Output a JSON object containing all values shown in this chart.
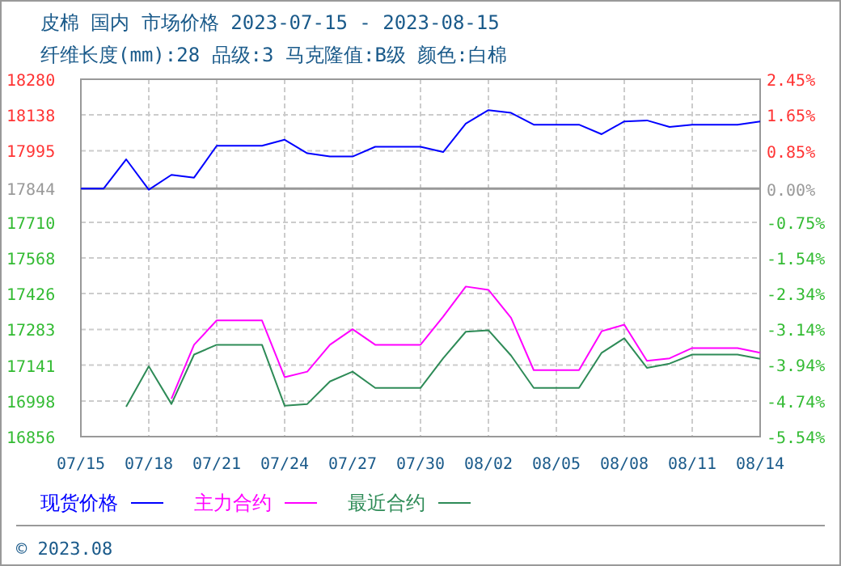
{
  "chart_data": {
    "type": "line",
    "title": "皮棉 国内 市场价格 2023-07-15 - 2023-08-15",
    "subtitle": "纤维长度(mm):28 品级:3 马克隆值:B级 颜色:白棉",
    "x": [
      "2023-07-15",
      "2023-07-16",
      "2023-07-17",
      "2023-07-18",
      "2023-07-19",
      "2023-07-20",
      "2023-07-21",
      "2023-07-22",
      "2023-07-23",
      "2023-07-24",
      "2023-07-25",
      "2023-07-26",
      "2023-07-27",
      "2023-07-28",
      "2023-07-29",
      "2023-07-30",
      "2023-07-31",
      "2023-08-01",
      "2023-08-02",
      "2023-08-03",
      "2023-08-04",
      "2023-08-05",
      "2023-08-06",
      "2023-08-07",
      "2023-08-08",
      "2023-08-09",
      "2023-08-10",
      "2023-08-11",
      "2023-08-12",
      "2023-08-13",
      "2023-08-14"
    ],
    "series": [
      {
        "name": "现货价格",
        "color": "#0000ff",
        "values": [
          17844,
          17844,
          17961,
          17840,
          17899,
          17888,
          18015,
          18015,
          18015,
          18039,
          17985,
          17972,
          17972,
          18011,
          18011,
          18011,
          17990,
          18103,
          18157,
          18146,
          18099,
          18099,
          18099,
          18061,
          18112,
          18116,
          18090,
          18099,
          18099,
          18099,
          18112
        ]
      },
      {
        "name": "主力合约",
        "color": "#ff00ff",
        "values": [
          null,
          null,
          null,
          null,
          17007,
          17222,
          17319,
          17319,
          17319,
          17093,
          17115,
          17222,
          17284,
          17222,
          17222,
          17222,
          17334,
          17454,
          17441,
          17329,
          17121,
          17121,
          17121,
          17276,
          17302,
          17158,
          17168,
          17209,
          17209,
          17209,
          17190
        ]
      },
      {
        "name": "最近合约",
        "color": "#2e8b57",
        "values": [
          null,
          null,
          16975,
          17136,
          16986,
          17183,
          17222,
          17222,
          17222,
          16979,
          16986,
          17076,
          17115,
          17050,
          17050,
          17050,
          17168,
          17274,
          17280,
          17179,
          17050,
          17050,
          17050,
          17190,
          17248,
          17130,
          17147,
          17183,
          17183,
          17183,
          17166
        ]
      }
    ],
    "xlim": [
      "2023-07-15",
      "2023-08-14"
    ],
    "xticks": [
      {
        "value": "2023-07-15",
        "label": "07/15"
      },
      {
        "value": "2023-07-18",
        "label": "07/18"
      },
      {
        "value": "2023-07-21",
        "label": "07/21"
      },
      {
        "value": "2023-07-24",
        "label": "07/24"
      },
      {
        "value": "2023-07-27",
        "label": "07/27"
      },
      {
        "value": "2023-07-30",
        "label": "07/30"
      },
      {
        "value": "2023-08-02",
        "label": "08/02"
      },
      {
        "value": "2023-08-05",
        "label": "08/05"
      },
      {
        "value": "2023-08-08",
        "label": "08/08"
      },
      {
        "value": "2023-08-11",
        "label": "08/11"
      },
      {
        "value": "2023-08-14",
        "label": "08/14"
      }
    ],
    "ylim": [
      16856,
      18280
    ],
    "yticks": [
      16856,
      16998,
      17141,
      17283,
      17426,
      17568,
      17710,
      17844,
      17995,
      18138,
      18280
    ],
    "y2lim": [
      -5.54,
      2.45
    ],
    "y2ticks": [
      {
        "value": -5.54,
        "label": "-5.54%"
      },
      {
        "value": -4.74,
        "label": "-4.74%"
      },
      {
        "value": -3.94,
        "label": "-3.94%"
      },
      {
        "value": -3.14,
        "label": "-3.14%"
      },
      {
        "value": -2.34,
        "label": "-2.34%"
      },
      {
        "value": -1.54,
        "label": "-1.54%"
      },
      {
        "value": -0.75,
        "label": "-0.75%"
      },
      {
        "value": 0,
        "label": "0.00%"
      },
      {
        "value": 0.85,
        "label": "0.85%"
      },
      {
        "value": 1.65,
        "label": "1.65%"
      },
      {
        "value": 2.45,
        "label": "2.45%"
      }
    ],
    "ref_lines": [
      {
        "axis": "y",
        "value": 17844,
        "color": "#999999"
      }
    ],
    "grid": true,
    "legend": "bottom",
    "marker": "none",
    "line_style": "solid",
    "annotations": [
      "© 2023.08"
    ]
  }
}
